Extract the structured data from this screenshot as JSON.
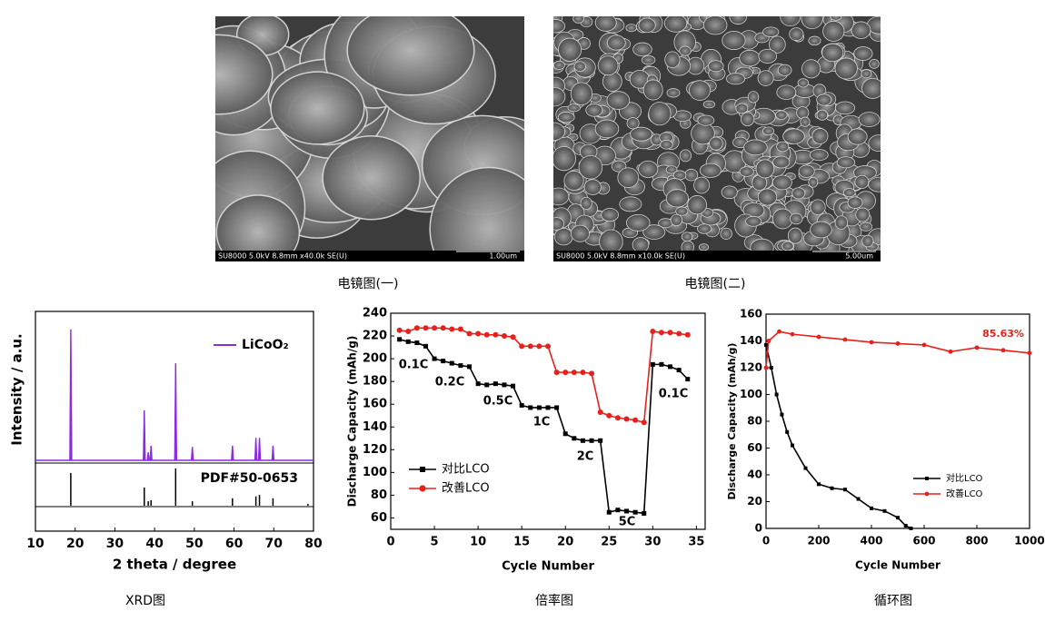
{
  "images": [
    {
      "info": "SU8000 5.0kV 8.8mm x40.0k SE(U)",
      "scale": "1.00um",
      "caption": "电镜图(一)"
    },
    {
      "info": "SU8000 5.0kV 8.8mm x10.0k SE(U)",
      "scale": "5.00um",
      "caption": "电镜图(二)"
    }
  ],
  "chart_data": [
    {
      "type": "spectrum",
      "x_label": "2 theta / degree",
      "y_label": "Intensity / a.u.",
      "caption": "XRD图",
      "xlim": [
        10,
        80
      ],
      "xticks": [
        10,
        20,
        30,
        40,
        50,
        60,
        70,
        80
      ],
      "ylim": [
        0,
        100
      ],
      "series": [
        {
          "name": "LiCoO₂",
          "color": "#8b2be0",
          "x": [
            18.9,
            37.4,
            38.4,
            39.1,
            45.3,
            49.5,
            59.6,
            65.5,
            66.4,
            69.8
          ],
          "values": [
            100,
            38,
            6,
            11,
            74,
            10,
            11,
            17,
            17,
            11
          ]
        }
      ],
      "reference": {
        "name": "PDF#50-0653",
        "color": "#000000",
        "x": [
          18.9,
          37.4,
          38.4,
          39.1,
          45.3,
          49.5,
          59.6,
          65.5,
          66.4,
          69.8,
          78.6
        ],
        "values": [
          88,
          49,
          12,
          15,
          100,
          12,
          20,
          25,
          29,
          20,
          5
        ]
      }
    },
    {
      "type": "line",
      "x_label": "Cycle Number",
      "y_label": "Discharge Capacity (mAh/g)",
      "caption": "倍率图",
      "xlim": [
        0,
        36
      ],
      "xticks": [
        0,
        5,
        10,
        15,
        20,
        25,
        30,
        35
      ],
      "ylim": [
        50,
        240
      ],
      "yticks": [
        60,
        80,
        100,
        120,
        140,
        160,
        180,
        200,
        220,
        240
      ],
      "series": [
        {
          "name": "对比LCO",
          "color": "#000000",
          "marker": "square",
          "x": [
            1,
            2,
            3,
            4,
            5,
            6,
            7,
            8,
            9,
            10,
            11,
            12,
            13,
            14,
            15,
            16,
            17,
            18,
            19,
            20,
            21,
            22,
            23,
            24,
            25,
            26,
            27,
            28,
            29,
            30,
            31,
            32,
            33,
            34
          ],
          "values": [
            217,
            215,
            214,
            211,
            200,
            198,
            196,
            194,
            193,
            178,
            177,
            178,
            177,
            176,
            159,
            157,
            157,
            157,
            157,
            134,
            130,
            128,
            128,
            128,
            65,
            67,
            66,
            65,
            64,
            195,
            195,
            193,
            190,
            182
          ]
        },
        {
          "name": "改善LCO",
          "color": "#e8201c",
          "marker": "circle",
          "x": [
            1,
            2,
            3,
            4,
            5,
            6,
            7,
            8,
            9,
            10,
            11,
            12,
            13,
            14,
            15,
            16,
            17,
            18,
            19,
            20,
            21,
            22,
            23,
            24,
            25,
            26,
            27,
            28,
            29,
            30,
            31,
            32,
            33,
            34
          ],
          "values": [
            225,
            224,
            227,
            227,
            227,
            227,
            226,
            226,
            222,
            222,
            221,
            221,
            220,
            219,
            211,
            211,
            211,
            211,
            188,
            188,
            188,
            188,
            187,
            153,
            150,
            148,
            147,
            146,
            144,
            224,
            223,
            223,
            222,
            221
          ]
        }
      ],
      "annotations": [
        "0.1C",
        "0.2C",
        "0.5C",
        "1C",
        "2C",
        "5C",
        "0.1C"
      ]
    },
    {
      "type": "line",
      "x_label": "Cycle Number",
      "y_label": "Discharge Capacity (mAh/g)",
      "caption": "循环图",
      "xlim": [
        0,
        1000
      ],
      "xticks": [
        0,
        200,
        400,
        600,
        800,
        1000
      ],
      "ylim": [
        0,
        160
      ],
      "yticks": [
        0,
        20,
        40,
        60,
        80,
        100,
        120,
        140,
        160
      ],
      "series": [
        {
          "name": "对比LCO",
          "color": "#000000",
          "marker": "square",
          "x": [
            0,
            20,
            40,
            60,
            80,
            100,
            150,
            200,
            250,
            300,
            350,
            400,
            450,
            500,
            530,
            550
          ],
          "values": [
            137,
            120,
            100,
            85,
            72,
            62,
            45,
            33,
            30,
            29,
            22,
            15,
            13,
            8,
            2,
            0
          ]
        },
        {
          "name": "改善LCO",
          "color": "#e8201c",
          "marker": "circle",
          "x": [
            0,
            10,
            50,
            100,
            200,
            300,
            400,
            500,
            600,
            700,
            800,
            900,
            1000
          ],
          "values": [
            120,
            140,
            147,
            145,
            143,
            141,
            139,
            138,
            137,
            132,
            135,
            133,
            131
          ]
        }
      ],
      "annotations": [
        {
          "text": "85.63%",
          "color": "#e8201c"
        }
      ]
    }
  ]
}
